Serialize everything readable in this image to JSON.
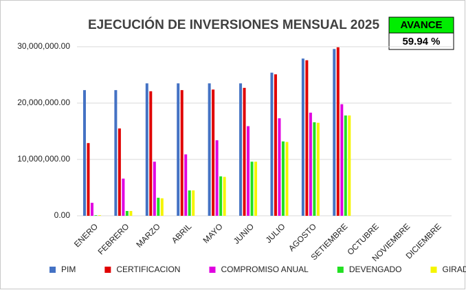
{
  "chart_data": {
    "type": "bar",
    "title": "EJECUCIÓN DE INVERSIONES MENSUAL 2025",
    "annotations": [
      "AVANCE",
      "59.94 %"
    ],
    "categories": [
      "ENERO",
      "FEBRERO",
      "MARZO",
      "ABRIL",
      "MAYO",
      "JUNIO",
      "JULIO",
      "AGOSTO",
      "SETIEMBRE",
      "OCTUBRE",
      "NOVIEMBRE",
      "DICIEMBRE"
    ],
    "series": [
      {
        "name": "PIM",
        "color": "#4472c4",
        "values": [
          22300000,
          22300000,
          23500000,
          23500000,
          23500000,
          23500000,
          25400000,
          27900000,
          29600000,
          null,
          null,
          null
        ]
      },
      {
        "name": "CERTIFICACION",
        "color": "#e00000",
        "values": [
          12900000,
          15500000,
          22100000,
          22300000,
          22400000,
          22700000,
          25100000,
          27600000,
          29900000,
          null,
          null,
          null
        ]
      },
      {
        "name": "COMPROMISO ANUAL",
        "color": "#e000e0",
        "values": [
          2300000,
          6600000,
          9600000,
          10900000,
          13400000,
          15900000,
          17300000,
          18300000,
          19800000,
          null,
          null,
          null
        ]
      },
      {
        "name": "DEVENGADO",
        "color": "#22e022",
        "values": [
          100000,
          850000,
          3200000,
          4500000,
          7000000,
          9600000,
          13200000,
          16600000,
          17800000,
          null,
          null,
          null
        ]
      },
      {
        "name": "GIRADO",
        "color": "#f5f500",
        "values": [
          100000,
          850000,
          3100000,
          4500000,
          6900000,
          9600000,
          13100000,
          16500000,
          17800000,
          null,
          null,
          null
        ]
      }
    ],
    "ylim": [
      0,
      30000000
    ],
    "yticks": [
      {
        "value": 0,
        "label": "0.00"
      },
      {
        "value": 10000000,
        "label": "10,000,000.00"
      },
      {
        "value": 20000000,
        "label": "20,000,000.00"
      },
      {
        "value": 30000000,
        "label": "30,000,000.00"
      }
    ],
    "grid": true,
    "legend": "bottom"
  }
}
